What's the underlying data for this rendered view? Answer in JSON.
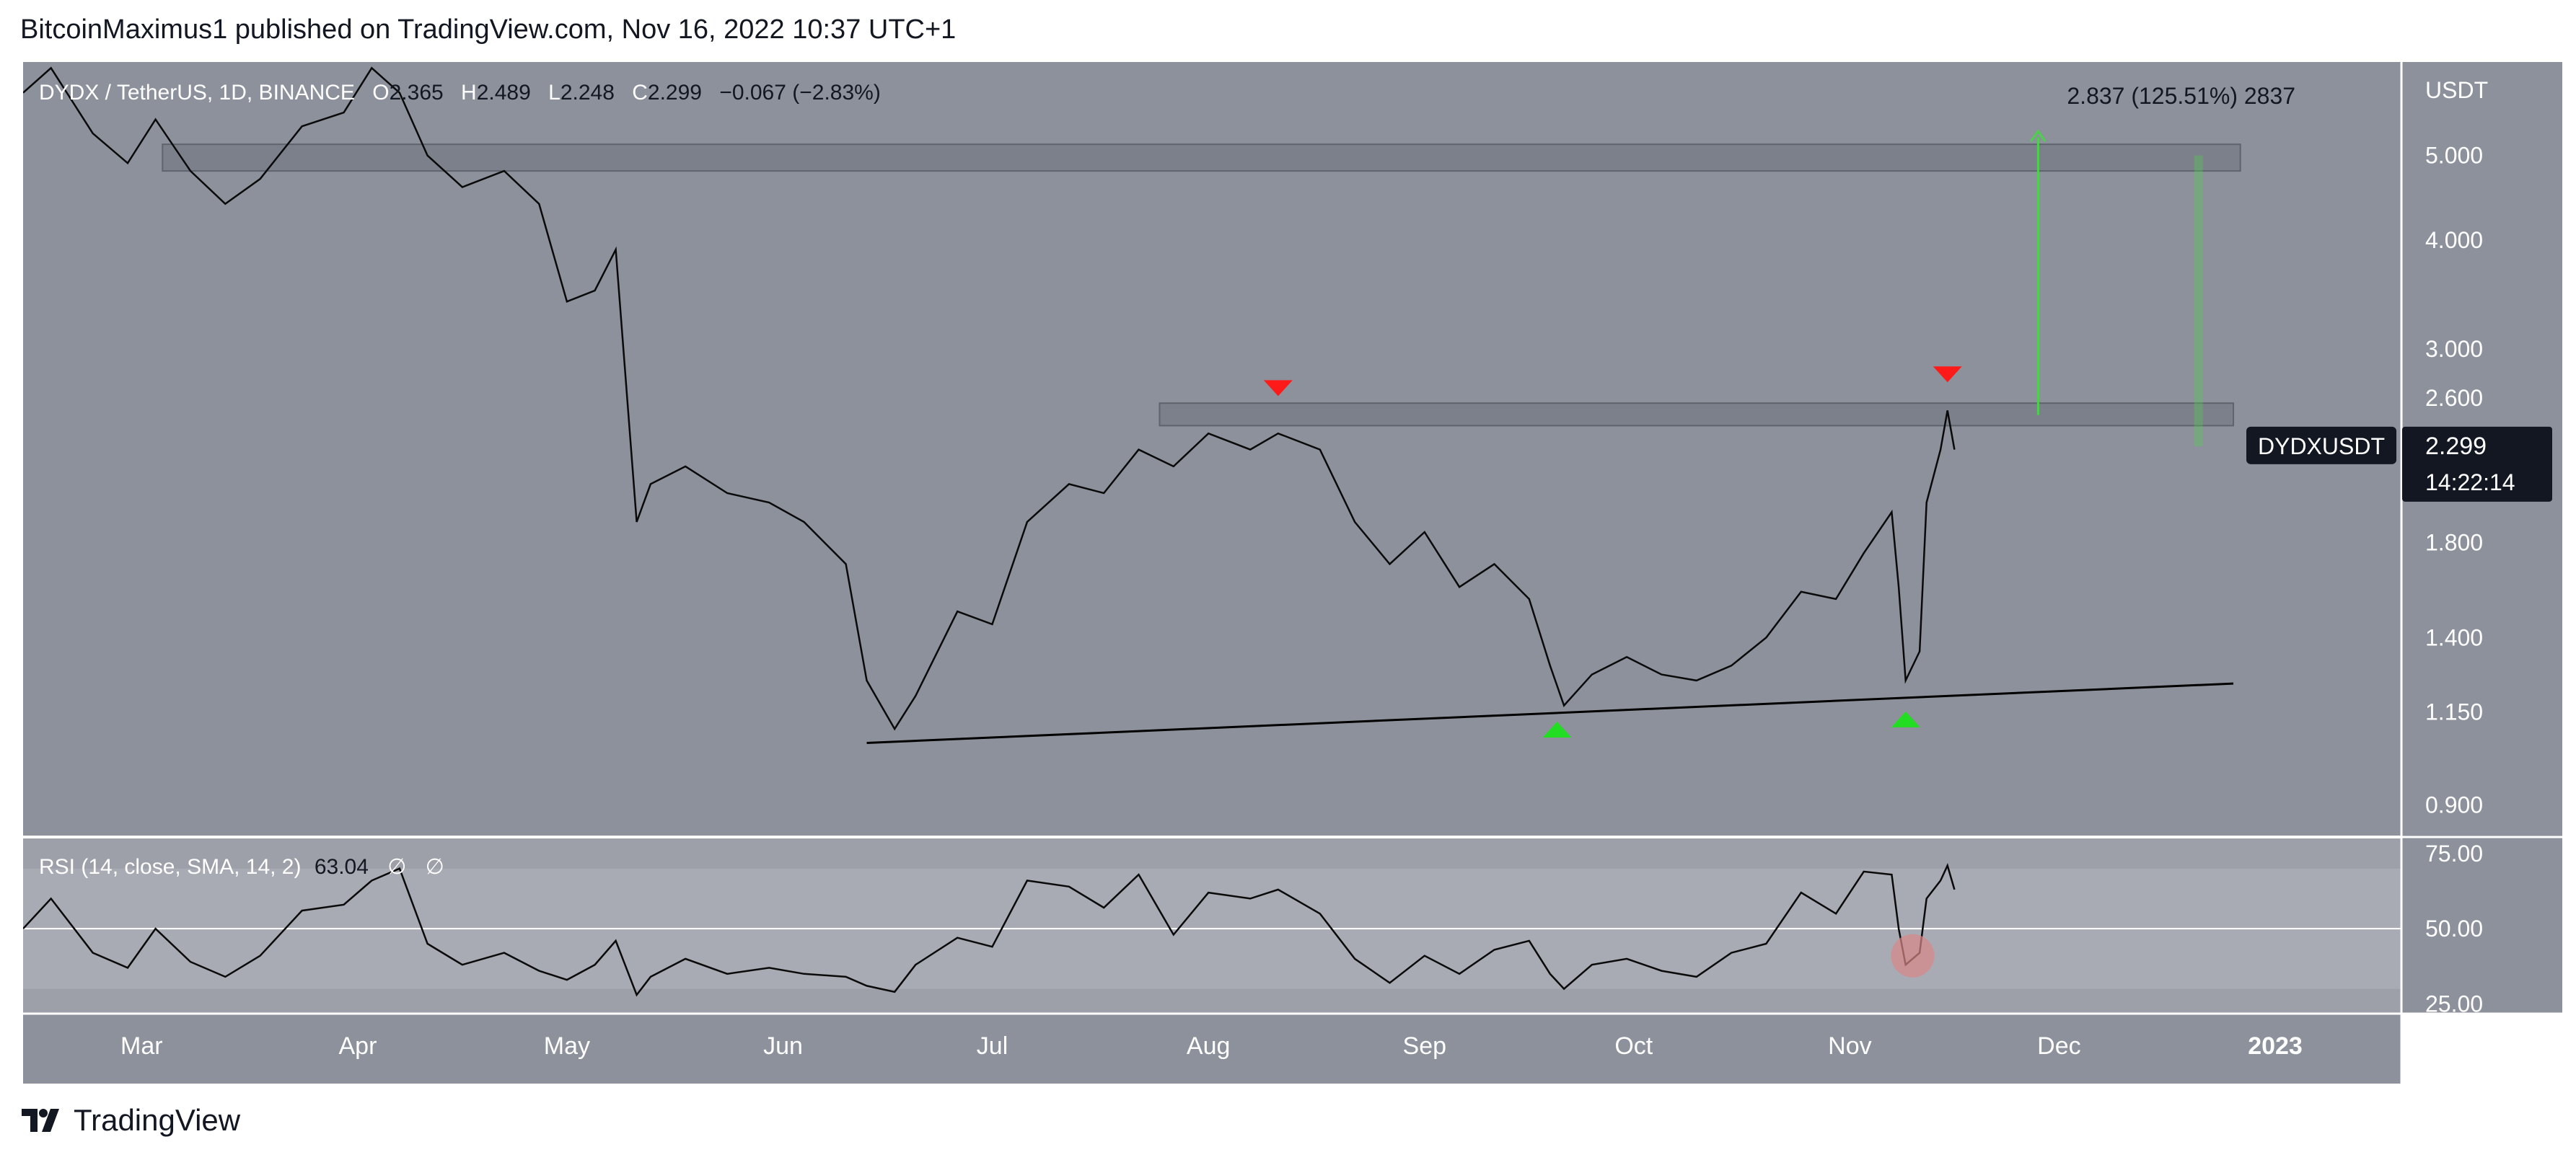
{
  "header": {
    "text": "BitcoinMaximus1 published on TradingView.com, Nov 16, 2022 10:37 UTC+1"
  },
  "footer": {
    "brand": "TradingView"
  },
  "colors": {
    "background": "#8d919b",
    "rsi_background": "#9da0a8",
    "rsi_band": "#a8abb3",
    "resistance_box": "#6f737d",
    "up_arrow": "#22dd22",
    "down_arrow": "#ff1a1a",
    "projection": "#4cd14c",
    "support_line": "#000000",
    "rsi_highlight": "#d98888"
  },
  "chart_data": [
    {
      "type": "candlestick",
      "symbol_legend": {
        "symbol": "DYDX / TetherUS, 1D, BINANCE",
        "o_label": "O",
        "o_value": "2.365",
        "h_label": "H",
        "h_value": "2.489",
        "l_label": "L",
        "l_value": "2.248",
        "c_label": "C",
        "c_value": "2.299",
        "change": "−0.067 (−2.83%)"
      },
      "currency": "USDT",
      "scale": "log",
      "ylim": [
        0.83,
        6.4
      ],
      "y_ticks": [
        "5.000",
        "4.000",
        "3.000",
        "1.800",
        "1.400",
        "1.150",
        "0.900"
      ],
      "y_tick_values": [
        5.0,
        4.0,
        3.0,
        1.8,
        1.4,
        1.15,
        0.9
      ],
      "x_start": "2022-02-12",
      "x_end": "2023-01-19",
      "x_ticks": [
        "Mar",
        "Apr",
        "May",
        "Jun",
        "Jul",
        "Aug",
        "Sep",
        "Oct",
        "Nov",
        "Dec",
        "2023"
      ],
      "x_tick_dates": [
        "2022-03-01",
        "2022-04-01",
        "2022-05-01",
        "2022-06-01",
        "2022-07-01",
        "2022-08-01",
        "2022-09-01",
        "2022-10-01",
        "2022-11-01",
        "2022-12-01",
        "2023-01-01"
      ],
      "price_path": [
        [
          "2022-02-12",
          5.9
        ],
        [
          "2022-02-16",
          6.3
        ],
        [
          "2022-02-22",
          5.3
        ],
        [
          "2022-02-27",
          4.9
        ],
        [
          "2022-03-03",
          5.5
        ],
        [
          "2022-03-08",
          4.8
        ],
        [
          "2022-03-13",
          4.4
        ],
        [
          "2022-03-18",
          4.7
        ],
        [
          "2022-03-24",
          5.4
        ],
        [
          "2022-03-30",
          5.6
        ],
        [
          "2022-04-03",
          6.3
        ],
        [
          "2022-04-07",
          5.9
        ],
        [
          "2022-04-11",
          5.0
        ],
        [
          "2022-04-16",
          4.6
        ],
        [
          "2022-04-22",
          4.8
        ],
        [
          "2022-04-27",
          4.4
        ],
        [
          "2022-05-01",
          3.4
        ],
        [
          "2022-05-05",
          3.5
        ],
        [
          "2022-05-08",
          3.9
        ],
        [
          "2022-05-11",
          1.9
        ],
        [
          "2022-05-13",
          2.1
        ],
        [
          "2022-05-18",
          2.2
        ],
        [
          "2022-05-24",
          2.05
        ],
        [
          "2022-05-30",
          2.0
        ],
        [
          "2022-06-04",
          1.9
        ],
        [
          "2022-06-10",
          1.7
        ],
        [
          "2022-06-13",
          1.25
        ],
        [
          "2022-06-17",
          1.1
        ],
        [
          "2022-06-20",
          1.2
        ],
        [
          "2022-06-26",
          1.5
        ],
        [
          "2022-07-01",
          1.45
        ],
        [
          "2022-07-06",
          1.9
        ],
        [
          "2022-07-12",
          2.1
        ],
        [
          "2022-07-17",
          2.05
        ],
        [
          "2022-07-22",
          2.3
        ],
        [
          "2022-07-27",
          2.2
        ],
        [
          "2022-08-01",
          2.4
        ],
        [
          "2022-08-07",
          2.3
        ],
        [
          "2022-08-11",
          2.4
        ],
        [
          "2022-08-17",
          2.3
        ],
        [
          "2022-08-22",
          1.9
        ],
        [
          "2022-08-27",
          1.7
        ],
        [
          "2022-09-01",
          1.85
        ],
        [
          "2022-09-06",
          1.6
        ],
        [
          "2022-09-11",
          1.7
        ],
        [
          "2022-09-16",
          1.55
        ],
        [
          "2022-09-19",
          1.3
        ],
        [
          "2022-09-21",
          1.17
        ],
        [
          "2022-09-25",
          1.27
        ],
        [
          "2022-09-30",
          1.33
        ],
        [
          "2022-10-05",
          1.27
        ],
        [
          "2022-10-10",
          1.25
        ],
        [
          "2022-10-15",
          1.3
        ],
        [
          "2022-10-20",
          1.4
        ],
        [
          "2022-10-25",
          1.58
        ],
        [
          "2022-10-30",
          1.55
        ],
        [
          "2022-11-03",
          1.75
        ],
        [
          "2022-11-07",
          1.95
        ],
        [
          "2022-11-08",
          1.6
        ],
        [
          "2022-11-09",
          1.25
        ],
        [
          "2022-11-11",
          1.35
        ],
        [
          "2022-11-12",
          2.0
        ],
        [
          "2022-11-14",
          2.3
        ],
        [
          "2022-11-15",
          2.55
        ],
        [
          "2022-11-16",
          2.3
        ]
      ],
      "resistance_zones": [
        {
          "from": "2022-03-04",
          "to": "2022-12-27",
          "low": 4.8,
          "high": 5.15
        },
        {
          "from": "2022-07-25",
          "to": "2022-12-26",
          "low": 2.45,
          "high": 2.6
        }
      ],
      "support_line": {
        "from": [
          "2022-06-13",
          1.06
        ],
        "to": [
          "2022-12-26",
          1.24
        ]
      },
      "markers": [
        {
          "kind": "down",
          "date": "2022-08-11",
          "price": 2.7
        },
        {
          "kind": "down",
          "date": "2022-11-15",
          "price": 2.8
        },
        {
          "kind": "up",
          "date": "2022-09-20",
          "price": 1.1
        },
        {
          "kind": "up",
          "date": "2022-11-09",
          "price": 1.13
        }
      ],
      "projection": {
        "label": "2.837 (125.51%) 2837",
        "date": "2022-11-28",
        "from_price": 2.52,
        "to_price": 5.33,
        "ghost_date": "2022-12-21",
        "ghost_from": 2.32,
        "ghost_to": 5.0
      },
      "last_price_badge": {
        "symbol": "DYDXUSDT",
        "price": "2.299",
        "countdown": "14:22:14",
        "value": 2.299
      },
      "partial_tick": "2.600"
    },
    {
      "type": "line",
      "legend": {
        "name": "RSI (14, close, SMA, 14, 2)",
        "value": "63.04",
        "extra1": "∅",
        "extra2": "∅"
      },
      "ylim": [
        22,
        80
      ],
      "y_ticks": [
        "75.00",
        "50.00",
        "25.00"
      ],
      "y_tick_values": [
        75,
        50,
        25
      ],
      "band": [
        30,
        70
      ],
      "midline": 50,
      "path": [
        [
          "2022-02-12",
          50
        ],
        [
          "2022-02-16",
          60
        ],
        [
          "2022-02-22",
          42
        ],
        [
          "2022-02-27",
          37
        ],
        [
          "2022-03-03",
          50
        ],
        [
          "2022-03-08",
          39
        ],
        [
          "2022-03-13",
          34
        ],
        [
          "2022-03-18",
          41
        ],
        [
          "2022-03-24",
          56
        ],
        [
          "2022-03-30",
          58
        ],
        [
          "2022-04-03",
          66
        ],
        [
          "2022-04-07",
          70
        ],
        [
          "2022-04-11",
          45
        ],
        [
          "2022-04-16",
          38
        ],
        [
          "2022-04-22",
          42
        ],
        [
          "2022-04-27",
          36
        ],
        [
          "2022-05-01",
          33
        ],
        [
          "2022-05-05",
          38
        ],
        [
          "2022-05-08",
          46
        ],
        [
          "2022-05-11",
          28
        ],
        [
          "2022-05-13",
          34
        ],
        [
          "2022-05-18",
          40
        ],
        [
          "2022-05-24",
          35
        ],
        [
          "2022-05-30",
          37
        ],
        [
          "2022-06-04",
          35
        ],
        [
          "2022-06-10",
          34
        ],
        [
          "2022-06-13",
          31
        ],
        [
          "2022-06-17",
          29
        ],
        [
          "2022-06-20",
          38
        ],
        [
          "2022-06-26",
          47
        ],
        [
          "2022-07-01",
          44
        ],
        [
          "2022-07-06",
          66
        ],
        [
          "2022-07-12",
          64
        ],
        [
          "2022-07-17",
          57
        ],
        [
          "2022-07-22",
          68
        ],
        [
          "2022-07-27",
          48
        ],
        [
          "2022-08-01",
          62
        ],
        [
          "2022-08-07",
          60
        ],
        [
          "2022-08-11",
          63
        ],
        [
          "2022-08-17",
          55
        ],
        [
          "2022-08-22",
          40
        ],
        [
          "2022-08-27",
          32
        ],
        [
          "2022-09-01",
          41
        ],
        [
          "2022-09-06",
          35
        ],
        [
          "2022-09-11",
          43
        ],
        [
          "2022-09-16",
          46
        ],
        [
          "2022-09-19",
          35
        ],
        [
          "2022-09-21",
          30
        ],
        [
          "2022-09-25",
          38
        ],
        [
          "2022-09-30",
          40
        ],
        [
          "2022-10-05",
          36
        ],
        [
          "2022-10-10",
          34
        ],
        [
          "2022-10-15",
          42
        ],
        [
          "2022-10-20",
          45
        ],
        [
          "2022-10-25",
          62
        ],
        [
          "2022-10-30",
          55
        ],
        [
          "2022-11-03",
          69
        ],
        [
          "2022-11-07",
          68
        ],
        [
          "2022-11-08",
          50
        ],
        [
          "2022-11-09",
          38
        ],
        [
          "2022-11-11",
          42
        ],
        [
          "2022-11-12",
          60
        ],
        [
          "2022-11-14",
          66
        ],
        [
          "2022-11-15",
          71
        ],
        [
          "2022-11-16",
          63
        ]
      ],
      "highlight": {
        "date": "2022-11-10",
        "value": 41
      }
    }
  ]
}
